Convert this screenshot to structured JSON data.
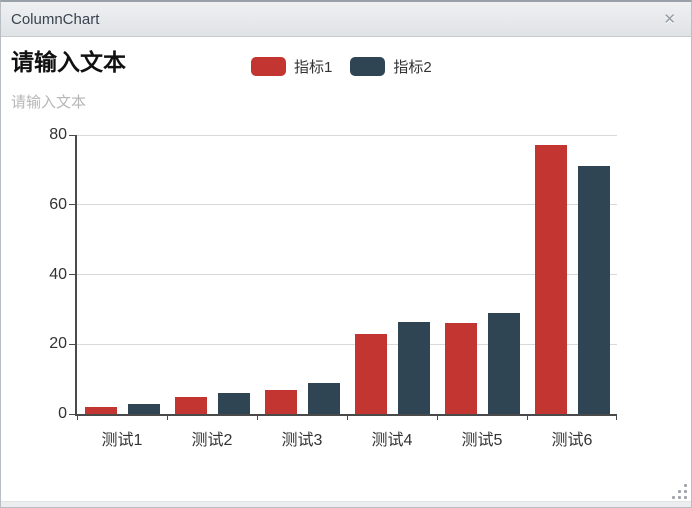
{
  "window": {
    "title": "ColumnChart",
    "close_glyph": "✕"
  },
  "chart_data": {
    "type": "bar",
    "title": "请输入文本",
    "subtitle": "请输入文本",
    "categories": [
      "测试1",
      "测试2",
      "测试3",
      "测试4",
      "测试5",
      "测试6"
    ],
    "series": [
      {
        "name": "指标1",
        "color": "#c23531",
        "values": [
          2,
          5,
          7,
          23,
          26,
          77
        ]
      },
      {
        "name": "指标2",
        "color": "#2f4554",
        "values": [
          3,
          6,
          9,
          26.5,
          29,
          71
        ]
      }
    ],
    "ylim": [
      0,
      80
    ],
    "yticks": [
      0,
      20,
      40,
      60,
      80
    ],
    "grid": true,
    "legend_position": "top-center",
    "xlabel": "",
    "ylabel": ""
  },
  "colors": {
    "series1": "#c23531",
    "series2": "#2f4554",
    "axis": "#4a4a4a",
    "gridline": "#d9d9d9",
    "titlebar_bg": "#e7e9eb",
    "title_text": "#111111",
    "subtitle_text": "#b7b7b7",
    "axis_label_text": "#333333"
  }
}
